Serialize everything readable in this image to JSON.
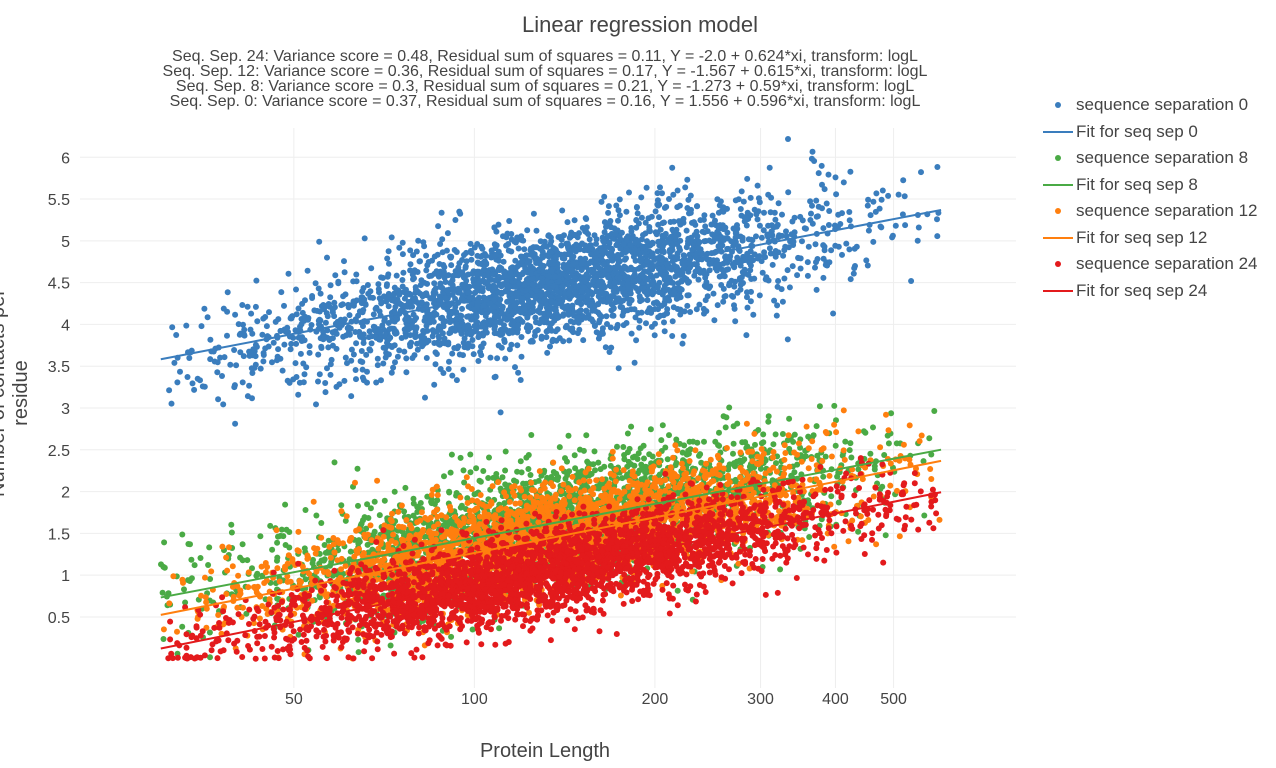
{
  "colors": {
    "seq0": "#3a7dbd",
    "seq8": "#4aaa45",
    "seq12": "#ff7f0e",
    "seq24": "#e31a1c"
  },
  "chart_data": {
    "type": "scatter",
    "title": "Linear regression model",
    "subtitle_lines": [
      "Seq. Sep. 24: Variance score = 0.48, Residual sum of squares = 0.11,  Y = -2.0 + 0.624*xi, transform: logL",
      "Seq. Sep. 12: Variance score = 0.36, Residual sum of squares = 0.17,  Y = -1.567 + 0.615*xi, transform: logL",
      "Seq. Sep. 8: Variance score = 0.3, Residual sum of squares = 0.21,  Y = -1.273 + 0.59*xi, transform: logL",
      "Seq. Sep. 0: Variance score = 0.37, Residual sum of squares = 0.16,  Y = 1.556 + 0.596*xi, transform: logL"
    ],
    "xlabel": "Protein Length",
    "ylabel": "Number of contacts per residue",
    "x_scale": "log",
    "xlim": [
      22,
      800
    ],
    "ylim": [
      -0.35,
      6.35
    ],
    "x_ticks": [
      50,
      100,
      200,
      300,
      400,
      500
    ],
    "y_ticks": [
      0.5,
      1,
      1.5,
      2,
      2.5,
      3,
      3.5,
      4,
      4.5,
      5,
      5.5,
      6
    ],
    "grid": true,
    "legend_position": "right",
    "x_range_data": [
      30,
      600
    ],
    "series": [
      {
        "name": "sequence separation 0",
        "kind": "points",
        "color_key": "seq0",
        "intercept": 1.556,
        "slope": 0.596,
        "spread": 0.35,
        "floor": 2.6,
        "count": 3000
      },
      {
        "name": "Fit for seq sep 0",
        "kind": "fit",
        "color_key": "seq0",
        "intercept": 1.556,
        "slope": 0.596
      },
      {
        "name": "sequence separation 8",
        "kind": "points",
        "color_key": "seq8",
        "intercept": -1.273,
        "slope": 0.59,
        "spread": 0.36,
        "floor": 0.0,
        "count": 2600
      },
      {
        "name": "Fit for seq sep 8",
        "kind": "fit",
        "color_key": "seq8",
        "intercept": -1.273,
        "slope": 0.59
      },
      {
        "name": "sequence separation 12",
        "kind": "points",
        "color_key": "seq12",
        "intercept": -1.567,
        "slope": 0.615,
        "spread": 0.32,
        "floor": 0.0,
        "count": 2600
      },
      {
        "name": "Fit for seq sep 12",
        "kind": "fit",
        "color_key": "seq12",
        "intercept": -1.567,
        "slope": 0.615
      },
      {
        "name": "sequence separation 24",
        "kind": "points",
        "color_key": "seq24",
        "intercept": -2.0,
        "slope": 0.624,
        "spread": 0.27,
        "floor": 0.0,
        "count": 3000
      },
      {
        "name": "Fit for seq sep 24",
        "kind": "fit",
        "color_key": "seq24",
        "intercept": -2.0,
        "slope": 0.624
      }
    ]
  }
}
